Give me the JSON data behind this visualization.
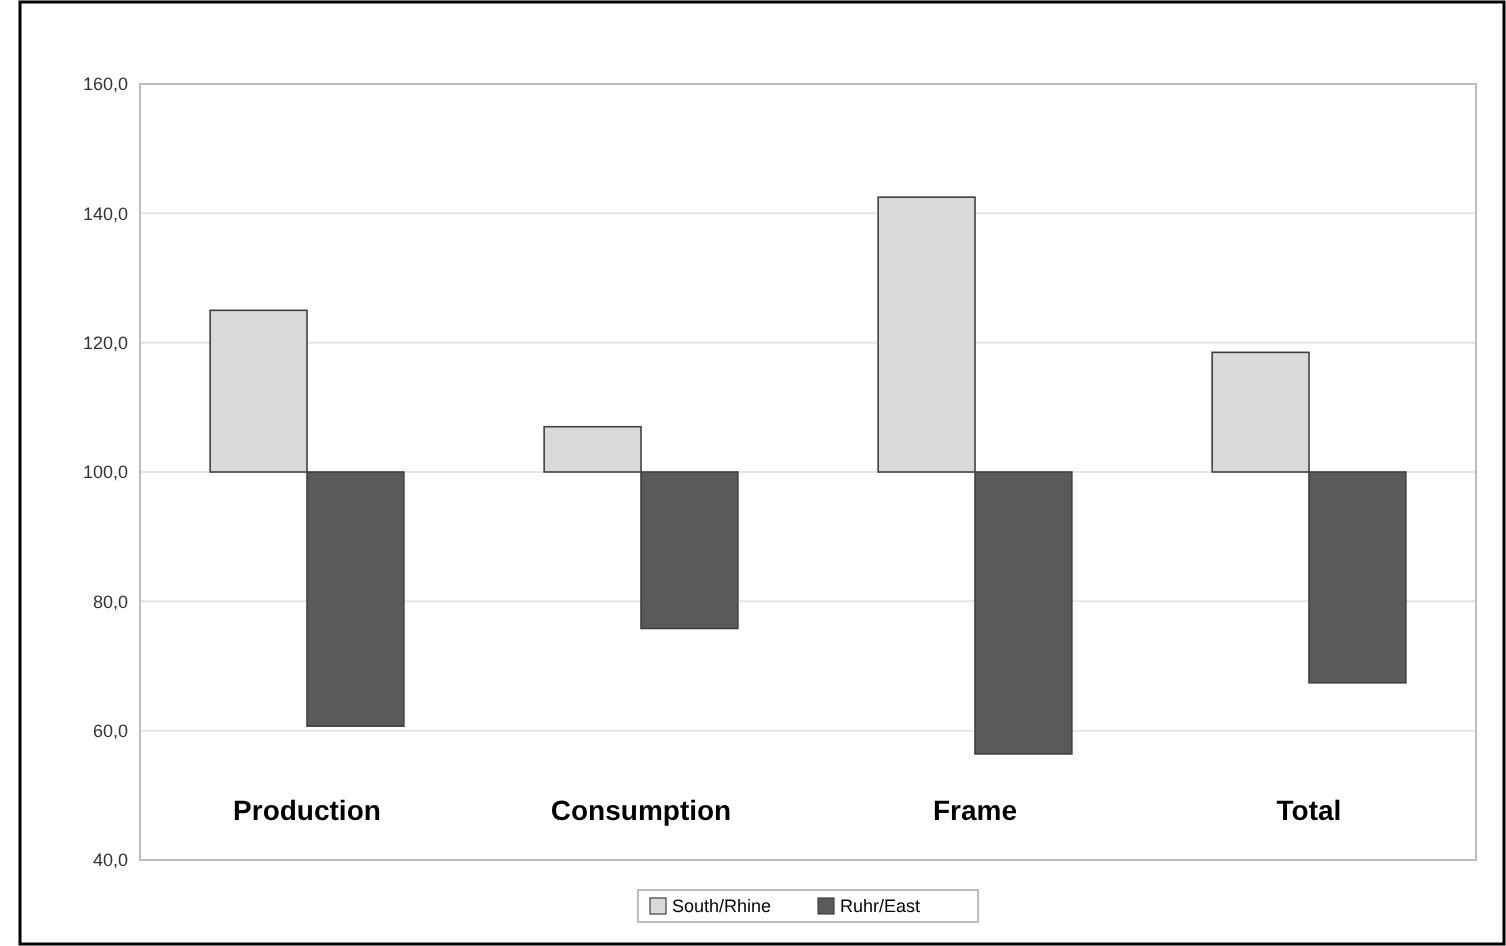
{
  "chart_data": {
    "type": "bar",
    "categories": [
      "Production",
      "Consumption",
      "Frame",
      "Total"
    ],
    "series": [
      {
        "name": "South/Rhine",
        "color": "#d9d9d9",
        "base": [
          100,
          100,
          100,
          100
        ],
        "values": [
          25,
          7,
          42.5,
          18.5
        ]
      },
      {
        "name": "Ruhr/East",
        "color": "#5a5a5a",
        "base": [
          100,
          100,
          100,
          100
        ],
        "values": [
          -39.3,
          -24.2,
          -43.6,
          -32.6
        ]
      }
    ],
    "ylim": [
      40,
      160
    ],
    "yticks": [
      {
        "value": 40,
        "label": "40,0"
      },
      {
        "value": 60,
        "label": "60,0"
      },
      {
        "value": 80,
        "label": "80,0"
      },
      {
        "value": 100,
        "label": "100,0"
      },
      {
        "value": 120,
        "label": "120,0"
      },
      {
        "value": 140,
        "label": "140,0"
      },
      {
        "value": 160,
        "label": "160,0"
      }
    ],
    "grid": "y",
    "legend": "bottom"
  }
}
